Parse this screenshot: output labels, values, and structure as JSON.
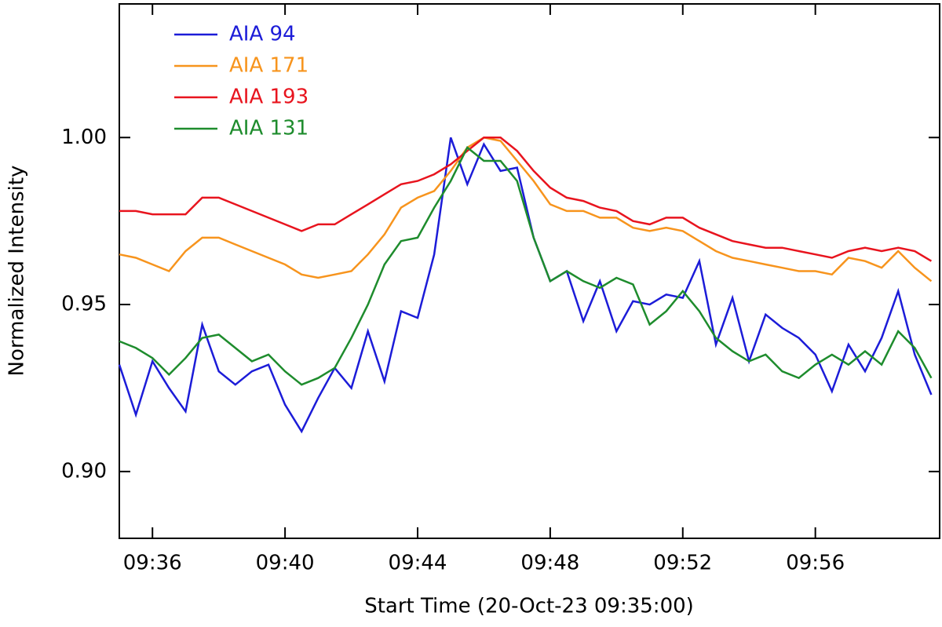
{
  "chart_data": {
    "type": "line",
    "xlabel": "Start Time (20-Oct-23 09:35:00)",
    "ylabel": "Normalized Intensity",
    "x": [
      0,
      0.5,
      1,
      1.5,
      2,
      2.5,
      3,
      3.5,
      4,
      4.5,
      5,
      5.5,
      6,
      6.5,
      7,
      7.5,
      8,
      8.5,
      9,
      9.5,
      10,
      10.5,
      11,
      11.5,
      12,
      12.5,
      13,
      13.5,
      14,
      14.5,
      15,
      15.5,
      16,
      16.5,
      17,
      17.5,
      18,
      18.5,
      19,
      19.5,
      20,
      20.5,
      21,
      21.5,
      22,
      22.5,
      23,
      23.5,
      24,
      24.5
    ],
    "xlim": [
      0,
      24.75
    ],
    "xticks": [
      {
        "value": 1,
        "label": "09:36"
      },
      {
        "value": 5,
        "label": "09:40"
      },
      {
        "value": 9,
        "label": "09:44"
      },
      {
        "value": 13,
        "label": "09:48"
      },
      {
        "value": 17,
        "label": "09:52"
      },
      {
        "value": 21,
        "label": "09:56"
      }
    ],
    "ylim": [
      0.88,
      1.04
    ],
    "yticks": [
      {
        "value": 0.9,
        "label": "0.90"
      },
      0.95,
      {
        "value": 1,
        "label": "1.00"
      }
    ],
    "legend": "upper left",
    "series": [
      {
        "name": "AIA 94",
        "color": "#1c1cd8",
        "values": [
          0.932,
          0.917,
          0.933,
          0.925,
          0.918,
          0.944,
          0.93,
          0.926,
          0.93,
          0.932,
          0.92,
          0.912,
          0.922,
          0.931,
          0.925,
          0.942,
          0.927,
          0.948,
          0.946,
          0.965,
          1.0,
          0.986,
          0.998,
          0.99,
          0.991,
          0.97,
          0.957,
          0.96,
          0.945,
          0.957,
          0.942,
          0.951,
          0.95,
          0.953,
          0.952,
          0.963,
          0.938,
          0.952,
          0.933,
          0.947,
          0.943,
          0.94,
          0.935,
          0.924,
          0.938,
          0.93,
          0.94,
          0.954,
          0.935,
          0.923
        ]
      },
      {
        "name": "AIA 171",
        "color": "#f7941d",
        "values": [
          0.965,
          0.964,
          0.962,
          0.96,
          0.966,
          0.97,
          0.97,
          0.968,
          0.966,
          0.964,
          0.962,
          0.959,
          0.958,
          0.959,
          0.96,
          0.965,
          0.971,
          0.979,
          0.982,
          0.984,
          0.99,
          0.997,
          1.0,
          0.999,
          0.993,
          0.987,
          0.98,
          0.978,
          0.978,
          0.976,
          0.976,
          0.973,
          0.972,
          0.973,
          0.972,
          0.969,
          0.966,
          0.964,
          0.963,
          0.962,
          0.961,
          0.96,
          0.96,
          0.959,
          0.964,
          0.963,
          0.961,
          0.966,
          0.961,
          0.957
        ]
      },
      {
        "name": "AIA 193",
        "color": "#e8141e",
        "values": [
          0.978,
          0.978,
          0.977,
          0.977,
          0.977,
          0.982,
          0.982,
          0.98,
          0.978,
          0.976,
          0.974,
          0.972,
          0.974,
          0.974,
          0.977,
          0.98,
          0.983,
          0.986,
          0.987,
          0.989,
          0.992,
          0.996,
          1.0,
          1.0,
          0.996,
          0.99,
          0.985,
          0.982,
          0.981,
          0.979,
          0.978,
          0.975,
          0.974,
          0.976,
          0.976,
          0.973,
          0.971,
          0.969,
          0.968,
          0.967,
          0.967,
          0.966,
          0.965,
          0.964,
          0.966,
          0.967,
          0.966,
          0.967,
          0.966,
          0.963
        ]
      },
      {
        "name": "AIA 131",
        "color": "#1e8c2d",
        "values": [
          0.939,
          0.937,
          0.934,
          0.929,
          0.934,
          0.94,
          0.941,
          0.937,
          0.933,
          0.935,
          0.93,
          0.926,
          0.928,
          0.931,
          0.94,
          0.95,
          0.962,
          0.969,
          0.97,
          0.979,
          0.987,
          0.997,
          0.993,
          0.993,
          0.987,
          0.97,
          0.957,
          0.96,
          0.957,
          0.955,
          0.958,
          0.956,
          0.944,
          0.948,
          0.954,
          0.948,
          0.94,
          0.936,
          0.933,
          0.935,
          0.93,
          0.928,
          0.932,
          0.935,
          0.932,
          0.936,
          0.932,
          0.942,
          0.937,
          0.928
        ]
      }
    ]
  }
}
